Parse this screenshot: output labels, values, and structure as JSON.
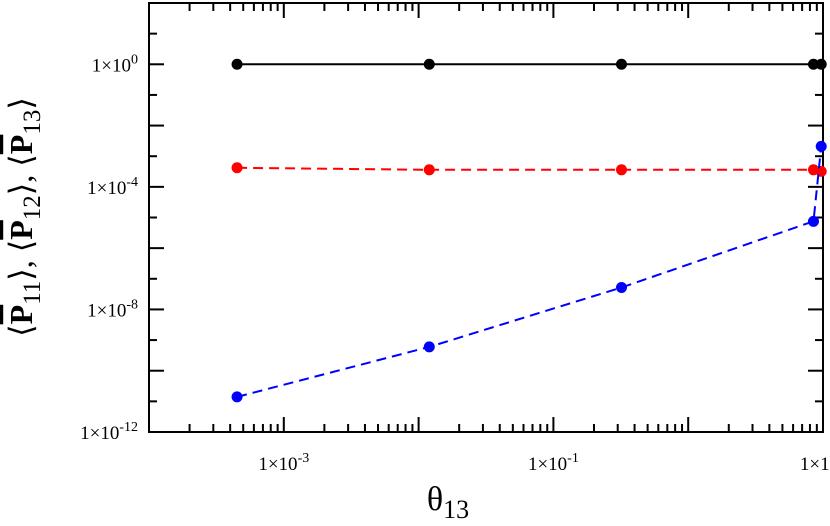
{
  "chart_data": {
    "type": "scatter",
    "xscale": "log",
    "yscale": "log",
    "xlim": [
      0.0001,
      10
    ],
    "ylim": [
      1e-12,
      100
    ],
    "xlabel": "θ13",
    "ylabel": "⟨P̄11⟩, ⟨P̄12⟩, ⟨P̄13⟩",
    "x_ticks": [
      {
        "value": 0.001,
        "label_base": "1×10",
        "label_exp": "-3"
      },
      {
        "value": 0.1,
        "label_base": "1×10",
        "label_exp": "-1"
      },
      {
        "value": 10,
        "label_base": "1×10",
        "label_exp": "1"
      }
    ],
    "y_ticks": [
      {
        "value": 1,
        "label_base": "1×10",
        "label_exp": "0"
      },
      {
        "value": 0.0001,
        "label_base": "1×10",
        "label_exp": "-4"
      },
      {
        "value": 1e-08,
        "label_base": "1×10",
        "label_exp": "-8"
      },
      {
        "value": 1e-12,
        "label_base": "1×10",
        "label_exp": "-12"
      }
    ],
    "x": [
      0.00045,
      0.012,
      0.32,
      8.5,
      9.7
    ],
    "series": [
      {
        "color": "#000000",
        "dash": "solid",
        "x": [
          0.00045,
          0.012,
          0.32,
          8.5,
          9.7
        ],
        "y": [
          1,
          1,
          1,
          1,
          1
        ]
      },
      {
        "color": "#ff0000",
        "dash": "dashed",
        "x": [
          0.00045,
          0.012,
          0.32,
          8.5,
          9.7
        ],
        "y": [
          0.00042,
          0.00036,
          0.00036,
          0.00036,
          0.00032
        ]
      },
      {
        "color": "#0000ff",
        "dash": "dashed",
        "x": [
          0.00045,
          0.012,
          0.32,
          8.5,
          9.7
        ],
        "y": [
          1.4e-11,
          6e-10,
          5.2e-08,
          7.5e-06,
          0.0021
        ]
      }
    ],
    "grid": false,
    "legend": "none"
  }
}
